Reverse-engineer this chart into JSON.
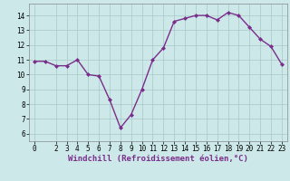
{
  "x": [
    0,
    1,
    2,
    3,
    4,
    5,
    6,
    7,
    8,
    9,
    10,
    11,
    12,
    13,
    14,
    15,
    16,
    17,
    18,
    19,
    20,
    21,
    22,
    23
  ],
  "y": [
    10.9,
    10.9,
    10.6,
    10.6,
    11.0,
    10.0,
    9.9,
    8.3,
    6.4,
    7.3,
    9.0,
    11.0,
    11.8,
    13.6,
    13.8,
    14.0,
    14.0,
    13.7,
    14.2,
    14.0,
    13.2,
    12.4,
    11.9,
    10.7
  ],
  "line_color": "#7b2d8b",
  "marker": "D",
  "marker_size": 2.0,
  "bg_color": "#cce8e8",
  "grid_color": "#aac8c8",
  "xlabel": "Windchill (Refroidissement éolien,°C)",
  "xlabel_fontsize": 6.5,
  "ylabel_ticks": [
    6,
    7,
    8,
    9,
    10,
    11,
    12,
    13,
    14
  ],
  "xlim": [
    -0.5,
    23.5
  ],
  "ylim": [
    5.5,
    14.8
  ],
  "xticks": [
    0,
    2,
    3,
    4,
    5,
    6,
    7,
    8,
    9,
    10,
    11,
    12,
    13,
    14,
    15,
    16,
    17,
    18,
    19,
    20,
    21,
    22,
    23
  ],
  "tick_fontsize": 5.5,
  "lw": 1.0
}
